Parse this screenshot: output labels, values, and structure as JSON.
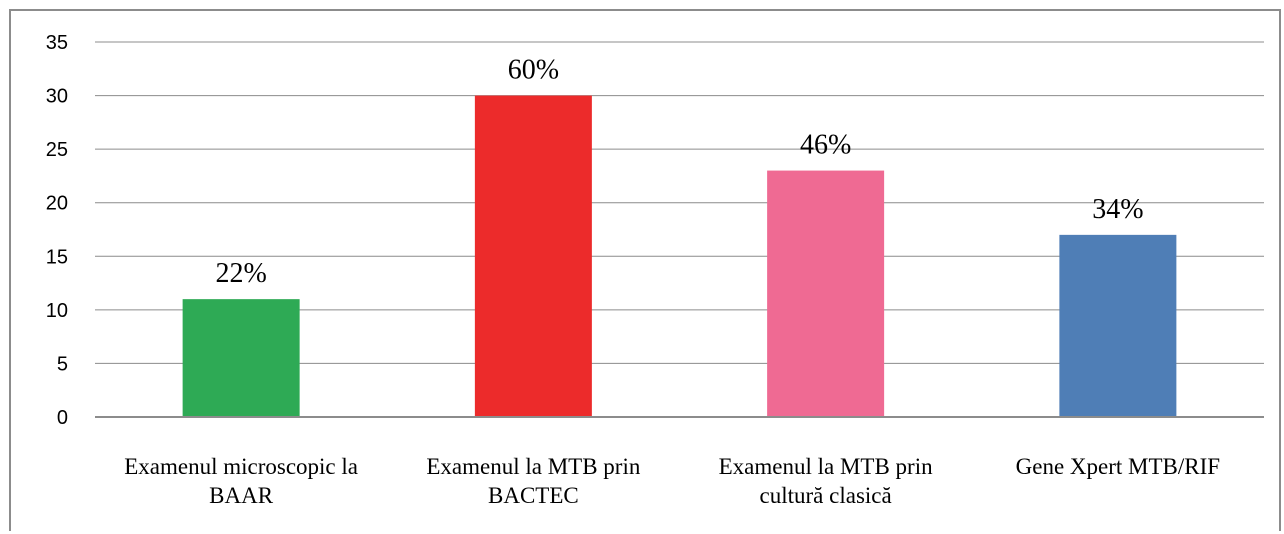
{
  "chart_data": {
    "type": "bar",
    "categories": [
      [
        "Examenul microscopic la",
        "BAAR"
      ],
      [
        "Examenul la MTB prin",
        "BACTEC"
      ],
      [
        "Examenul la MTB prin",
        "cultură clasică"
      ],
      [
        "Gene Xpert MTB/RIF"
      ]
    ],
    "values": [
      11,
      30,
      23,
      17
    ],
    "data_labels": [
      "22%",
      "60%",
      "46%",
      "34%"
    ],
    "colors": [
      "#2eaa55",
      "#ec2b2b",
      "#ef6a93",
      "#4f7eb6"
    ],
    "ylim": [
      0,
      35
    ],
    "yticks": [
      0,
      5,
      10,
      15,
      20,
      25,
      30,
      35
    ],
    "grid": true,
    "legend": "none"
  }
}
